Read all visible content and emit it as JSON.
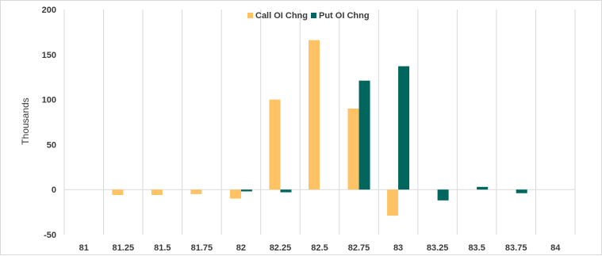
{
  "chart_data": {
    "type": "bar",
    "categories": [
      "81",
      "81.25",
      "81.5",
      "81.75",
      "82",
      "82.25",
      "82.5",
      "82.75",
      "83",
      "83.25",
      "83.5",
      "83.75",
      "84"
    ],
    "series": [
      {
        "name": "Call OI Chng",
        "color": "#FFC265",
        "values": [
          0,
          -6,
          -6,
          -5,
          -10,
          100,
          166,
          90,
          -29,
          0,
          0,
          0,
          0
        ]
      },
      {
        "name": "Put OI Chng",
        "color": "#00665E",
        "values": [
          0,
          0,
          0,
          0,
          -2,
          -3,
          0,
          121,
          137,
          -12,
          3,
          -4,
          0
        ]
      }
    ],
    "ylabel": "Thousands",
    "ylim": [
      -50,
      200
    ],
    "yticks": [
      "-50",
      "0",
      "50",
      "100",
      "150",
      "200"
    ],
    "ytick_values": [
      -50,
      0,
      50,
      100,
      150,
      200
    ],
    "grid": "vertical-category-separators",
    "legend_position": "top-center"
  }
}
